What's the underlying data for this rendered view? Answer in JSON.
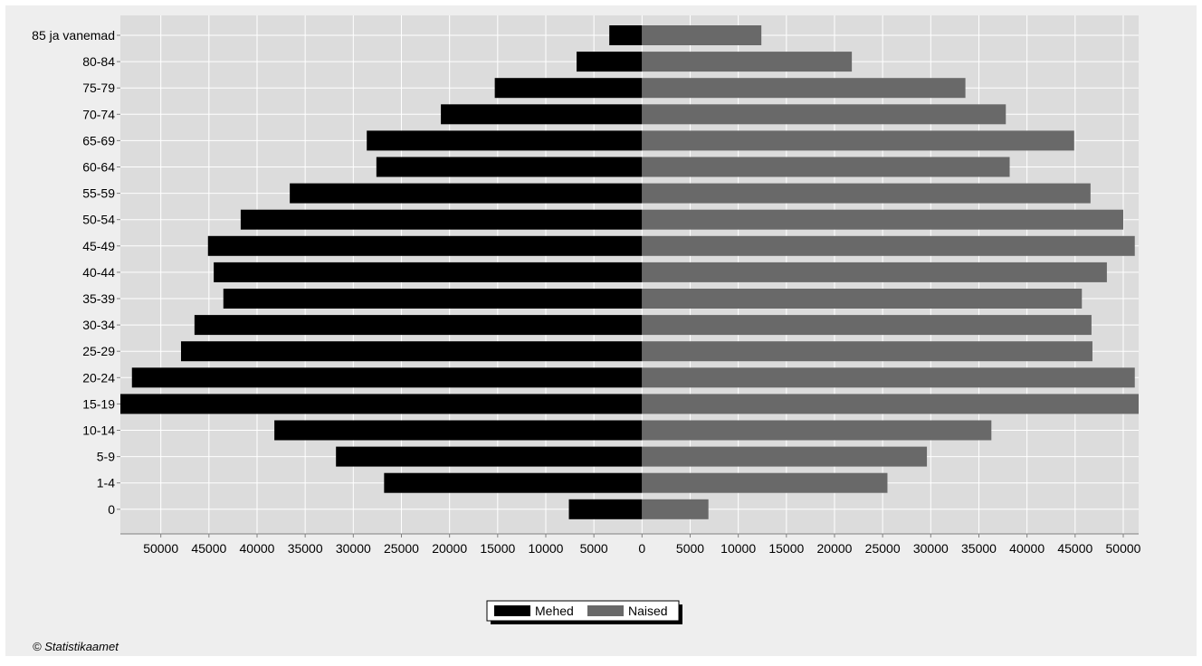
{
  "chart_data": {
    "type": "bar",
    "orientation": "horizontal",
    "layout": "population-pyramid",
    "categories": [
      "85 ja vanemad",
      "80-84",
      "75-79",
      "70-74",
      "65-69",
      "60-64",
      "55-59",
      "50-54",
      "45-49",
      "40-44",
      "35-39",
      "30-34",
      "25-29",
      "20-24",
      "15-19",
      "10-14",
      "5-9",
      "1-4",
      "0"
    ],
    "series": [
      {
        "name": "Mehed",
        "color": "#000000",
        "side": "left",
        "values": [
          3400,
          6800,
          15300,
          20900,
          28600,
          27600,
          36600,
          41700,
          45100,
          44500,
          43500,
          46500,
          47900,
          53000,
          54200,
          38200,
          31800,
          26800,
          7600
        ]
      },
      {
        "name": "Naised",
        "color": "#696969",
        "side": "right",
        "values": [
          12400,
          21800,
          33600,
          37800,
          44900,
          38200,
          46600,
          50000,
          51200,
          48300,
          45700,
          46700,
          46800,
          51200,
          51600,
          36300,
          29600,
          25500,
          6900
        ]
      }
    ],
    "xlim_left": 54200,
    "xlim_right": 51600,
    "ticks_left": [
      50000,
      45000,
      40000,
      35000,
      30000,
      25000,
      20000,
      15000,
      10000,
      5000
    ],
    "tick_zero": 0,
    "ticks_right": [
      5000,
      10000,
      15000,
      20000,
      25000,
      30000,
      35000,
      40000,
      45000,
      50000
    ],
    "grid": true,
    "legend_position": "bottom-center",
    "colors": {
      "plot_bg": "#dcdcdc",
      "panel_bg": "#eeeeee",
      "grid": "#ffffff"
    }
  },
  "credit": "© Statistikaamet"
}
